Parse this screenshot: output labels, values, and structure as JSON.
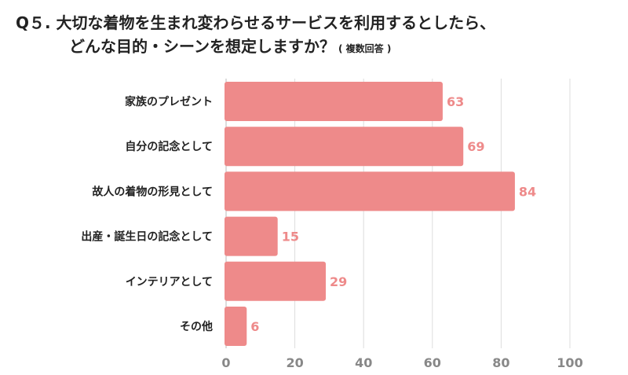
{
  "title_line1": "Q５. 大切な着物を生まれ変わらせるサービスを利用するとしたら、",
  "title_line2": "どんな目的・シーンを想定しますか？",
  "title_note": "( 複数回答 )",
  "chart_data": {
    "type": "bar",
    "orientation": "horizontal",
    "categories": [
      "家族のプレゼント",
      "自分の記念として",
      "故人の着物の形見として",
      "出産・誕生日の記念として",
      "インテリアとして",
      "その他"
    ],
    "values": [
      63,
      69,
      84,
      15,
      29,
      6
    ],
    "xlim": [
      0,
      100
    ],
    "xticks": [
      0,
      20,
      40,
      60,
      80,
      100
    ],
    "grid": true,
    "legend": "none",
    "bar_color": "#ee8a8a",
    "label_color": "#ee8a8a",
    "tick_color": "#888888"
  }
}
